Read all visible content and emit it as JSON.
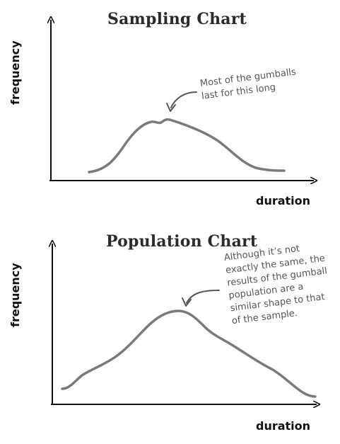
{
  "charts": [
    {
      "title": "Sampling Chart",
      "ylabel": "frequency",
      "xlabel": "duration",
      "annotation": [
        "Most of the gumballs",
        "last for this long"
      ]
    },
    {
      "title": "Population Chart",
      "ylabel": "frequency",
      "xlabel": "duration",
      "annotation": [
        "Although it’s not",
        "exactly the same, the",
        "results of the gumball",
        "population are a",
        "similar shape to that",
        "of the sample."
      ]
    }
  ],
  "colors": {
    "curve": "#7a7a7a",
    "axis": "#111111",
    "text": "#222222"
  }
}
